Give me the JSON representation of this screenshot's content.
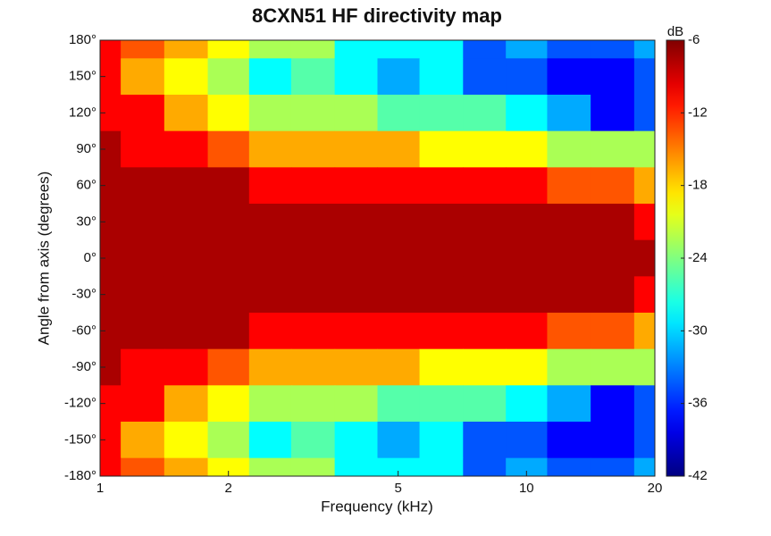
{
  "chart_data": {
    "type": "contour",
    "title": "8CXN51 HF directivity map",
    "x_label": "Frequency (kHz)",
    "y_label": "Angle from axis (degrees)",
    "colorbar_label": "dB",
    "x_scale": "log",
    "x": [
      1,
      1.25,
      1.6,
      2,
      2.5,
      3.15,
      4,
      5,
      6.3,
      8,
      10,
      12.5,
      16,
      20
    ],
    "y": [
      180,
      150,
      120,
      90,
      60,
      30,
      0,
      -30,
      -60,
      -90,
      -120,
      -150,
      -180
    ],
    "z": [
      [
        -12,
        -14,
        -16,
        -20,
        -24,
        -22,
        -28,
        -30,
        -28,
        -34,
        -33,
        -36,
        -35,
        -33
      ],
      [
        -11,
        -16,
        -19,
        -24,
        -28,
        -26,
        -30,
        -31,
        -29,
        -36,
        -34,
        -37,
        -38,
        -36
      ],
      [
        -10,
        -12,
        -17,
        -21,
        -22,
        -22,
        -24,
        -25,
        -25,
        -27,
        -28,
        -33,
        -37,
        -35
      ],
      [
        -7,
        -10,
        -11,
        -14,
        -16,
        -17,
        -18,
        -18,
        -19,
        -20,
        -21,
        -22,
        -24,
        -22
      ],
      [
        -6,
        -7,
        -8,
        -9,
        -10,
        -10,
        -10,
        -11,
        -10,
        -11,
        -12,
        -13,
        -14,
        -16
      ],
      [
        -6,
        -6,
        -6,
        -6,
        -6,
        -6,
        -6,
        -6,
        -6,
        -6,
        -6,
        -7,
        -7,
        -10
      ],
      [
        -6,
        -6,
        -6,
        -6,
        -6,
        -6,
        -6,
        -6,
        -6,
        -6,
        -6,
        -6,
        -6,
        -6
      ],
      [
        -6,
        -6,
        -6,
        -6,
        -6,
        -6,
        -6,
        -6,
        -6,
        -6,
        -6,
        -7,
        -7,
        -10
      ],
      [
        -6,
        -7,
        -8,
        -9,
        -10,
        -10,
        -10,
        -11,
        -10,
        -11,
        -12,
        -13,
        -14,
        -16
      ],
      [
        -7,
        -10,
        -11,
        -14,
        -16,
        -17,
        -18,
        -18,
        -19,
        -20,
        -21,
        -22,
        -24,
        -22
      ],
      [
        -10,
        -12,
        -17,
        -21,
        -22,
        -22,
        -24,
        -25,
        -25,
        -27,
        -28,
        -33,
        -37,
        -35
      ],
      [
        -11,
        -16,
        -19,
        -24,
        -28,
        -26,
        -30,
        -31,
        -29,
        -36,
        -34,
        -37,
        -38,
        -36
      ],
      [
        -12,
        -14,
        -16,
        -20,
        -24,
        -22,
        -28,
        -30,
        -28,
        -34,
        -33,
        -36,
        -35,
        -33
      ]
    ],
    "contour_step": 3,
    "xlim": [
      1,
      20
    ],
    "xticks": [
      1,
      2,
      5,
      10,
      20
    ],
    "ylim": [
      -180,
      180
    ],
    "yticks": [
      {
        "value": -180,
        "label": "-180°"
      },
      {
        "value": -150,
        "label": "-150°"
      },
      {
        "value": -120,
        "label": "-120°"
      },
      {
        "value": -90,
        "label": "-90°"
      },
      {
        "value": -60,
        "label": "-60°"
      },
      {
        "value": -30,
        "label": "-30°"
      },
      {
        "value": 0,
        "label": "0°"
      },
      {
        "value": 30,
        "label": "30°"
      },
      {
        "value": 60,
        "label": "60°"
      },
      {
        "value": 90,
        "label": "90°"
      },
      {
        "value": 120,
        "label": "120°"
      },
      {
        "value": 150,
        "label": "150°"
      },
      {
        "value": 180,
        "label": "180°"
      }
    ],
    "clim": [
      -42,
      -6
    ],
    "cticks": [
      -42,
      -36,
      -30,
      -24,
      -18,
      -12,
      -6
    ],
    "colormap": "jet"
  }
}
